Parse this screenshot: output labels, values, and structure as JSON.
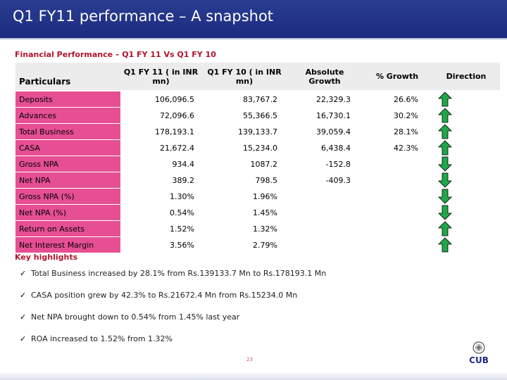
{
  "slide": {
    "title": "Q1 FY11 performance – A snapshot",
    "subtitle": "Financial Performance – Q1 FY 11 Vs Q1 FY 10",
    "page_number": "23",
    "logo_text": "CUB"
  },
  "table": {
    "headers": {
      "particulars": "Particulars",
      "q1fy11": "Q1 FY 11 ( in INR mn)",
      "q1fy10": "Q1 FY 10 ( in INR mn)",
      "abs_growth": "Absolute Growth",
      "pct_growth": "% Growth",
      "direction": "Direction"
    },
    "rows": [
      {
        "label": "Deposits",
        "q1fy11": "106,096.5",
        "q1fy10": "83,767.2",
        "abs": "22,329.3",
        "pct": "26.6%",
        "direction": "up"
      },
      {
        "label": "Advances",
        "q1fy11": "72,096.6",
        "q1fy10": "55,366.5",
        "abs": "16,730.1",
        "pct": "30.2%",
        "direction": "up"
      },
      {
        "label": "Total Business",
        "q1fy11": "178,193.1",
        "q1fy10": "139,133.7",
        "abs": "39,059.4",
        "pct": "28.1%",
        "direction": "up"
      },
      {
        "label": "CASA",
        "q1fy11": "21,672.4",
        "q1fy10": "15,234.0",
        "abs": "6,438.4",
        "pct": "42.3%",
        "direction": "up"
      },
      {
        "label": "Gross NPA",
        "q1fy11": "934.4",
        "q1fy10": "1087.2",
        "abs": "-152.8",
        "pct": "",
        "direction": "down"
      },
      {
        "label": "Net NPA",
        "q1fy11": "389.2",
        "q1fy10": "798.5",
        "abs": "-409.3",
        "pct": "",
        "direction": "down"
      },
      {
        "label": "Gross NPA (%)",
        "q1fy11": "1.30%",
        "q1fy10": "1.96%",
        "abs": "",
        "pct": "",
        "direction": "down"
      },
      {
        "label": "Net NPA (%)",
        "q1fy11": "0.54%",
        "q1fy10": "1.45%",
        "abs": "",
        "pct": "",
        "direction": "down"
      },
      {
        "label": "Return on Assets",
        "q1fy11": "1.52%",
        "q1fy10": "1.32%",
        "abs": "",
        "pct": "",
        "direction": "up"
      },
      {
        "label": "Net Interest Margin",
        "q1fy11": "3.56%",
        "q1fy10": "2.79%",
        "abs": "",
        "pct": "",
        "direction": "up"
      }
    ]
  },
  "highlights": {
    "title": "Key highlights",
    "items": [
      "Total Business increased by 28.1% from Rs.139133.7 Mn to Rs.178193.1 Mn",
      "CASA position grew by 42.3% to Rs.21672.4 Mn from Rs.15234.0 Mn",
      "Net NPA brought down to 0.54% from 1.45% last year",
      "ROA increased to 1.52% from 1.32%"
    ]
  },
  "colors": {
    "title_bar": "#1c2c80",
    "label_cell": "#e64f93",
    "accent_red": "#b0142e",
    "arrow_green": "#1fa84a"
  }
}
